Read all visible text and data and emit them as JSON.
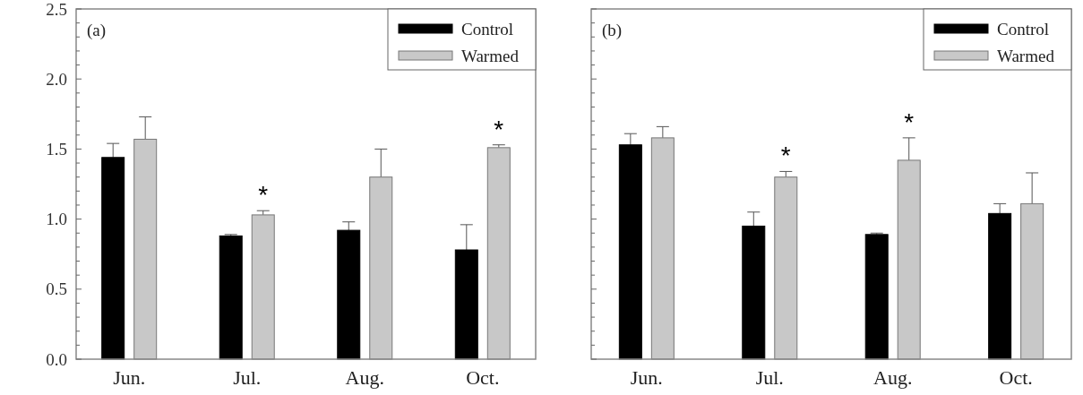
{
  "chart_data": [
    {
      "type": "bar",
      "categories": [
        "Jun.",
        "Jul.",
        "Aug.",
        "Oct."
      ],
      "series": [
        {
          "name": "Control",
          "color": "#000000",
          "values": [
            1.44,
            0.88,
            0.92,
            0.78
          ],
          "errors": [
            0.1,
            0.01,
            0.06,
            0.18
          ]
        },
        {
          "name": "Warmed",
          "color": "#c8c8c8",
          "values": [
            1.57,
            1.03,
            1.3,
            1.51
          ],
          "errors": [
            0.16,
            0.03,
            0.2,
            0.02
          ],
          "value_labels": [
            null,
            "*",
            null,
            "*"
          ]
        }
      ],
      "ylim": [
        0,
        2.5
      ],
      "yticks": [
        {
          "value": 0,
          "label": "0.0"
        },
        {
          "value": 0.1,
          "label": null
        },
        {
          "value": 0.2,
          "label": null
        },
        {
          "value": 0.3,
          "label": null
        },
        {
          "value": 0.4,
          "label": null
        },
        0.5,
        {
          "value": 0.6,
          "label": null
        },
        {
          "value": 0.7,
          "label": null
        },
        {
          "value": 0.8,
          "label": null
        },
        {
          "value": 0.9,
          "label": null
        },
        {
          "value": 1,
          "label": "1.0"
        },
        {
          "value": 1.1,
          "label": null
        },
        {
          "value": 1.2,
          "label": null
        },
        {
          "value": 1.3,
          "label": null
        },
        {
          "value": 1.4,
          "label": null
        },
        1.5,
        {
          "value": 1.6,
          "label": null
        },
        {
          "value": 1.7,
          "label": null
        },
        {
          "value": 1.8,
          "label": null
        },
        {
          "value": 1.9,
          "label": null
        },
        {
          "value": 2,
          "label": "2.0"
        },
        {
          "value": 2.1,
          "label": null
        },
        {
          "value": 2.2,
          "label": null
        },
        {
          "value": 2.3,
          "label": null
        },
        {
          "value": 2.4,
          "label": null
        },
        2.5
      ],
      "legend": "top right",
      "annotations": [
        "(a)"
      ]
    },
    {
      "type": "bar",
      "categories": [
        "Jun.",
        "Jul.",
        "Aug.",
        "Oct."
      ],
      "series": [
        {
          "name": "Control",
          "color": "#000000",
          "values": [
            1.53,
            0.95,
            0.89,
            1.04
          ],
          "errors": [
            0.08,
            0.1,
            0.01,
            0.07
          ]
        },
        {
          "name": "Warmed",
          "color": "#c8c8c8",
          "values": [
            1.58,
            1.3,
            1.42,
            1.11
          ],
          "errors": [
            0.08,
            0.04,
            0.16,
            0.22
          ],
          "value_labels": [
            null,
            "*",
            "*",
            null
          ]
        }
      ],
      "ylim": [
        0,
        2.5
      ],
      "yticks": [
        {
          "value": 0,
          "label": null
        },
        {
          "value": 0.1,
          "label": null
        },
        {
          "value": 0.2,
          "label": null
        },
        {
          "value": 0.3,
          "label": null
        },
        {
          "value": 0.4,
          "label": null
        },
        {
          "value": 0.5,
          "label": null
        },
        {
          "value": 0.6,
          "label": null
        },
        {
          "value": 0.7,
          "label": null
        },
        {
          "value": 0.8,
          "label": null
        },
        {
          "value": 0.9,
          "label": null
        },
        {
          "value": 1,
          "label": null
        },
        {
          "value": 1.1,
          "label": null
        },
        {
          "value": 1.2,
          "label": null
        },
        {
          "value": 1.3,
          "label": null
        },
        {
          "value": 1.4,
          "label": null
        },
        {
          "value": 1.5,
          "label": null
        },
        {
          "value": 1.6,
          "label": null
        },
        {
          "value": 1.7,
          "label": null
        },
        {
          "value": 1.8,
          "label": null
        },
        {
          "value": 1.9,
          "label": null
        },
        {
          "value": 2,
          "label": null
        },
        {
          "value": 2.1,
          "label": null
        },
        {
          "value": 2.2,
          "label": null
        },
        {
          "value": 2.3,
          "label": null
        },
        {
          "value": 2.4,
          "label": null
        },
        {
          "value": 2.5,
          "label": null
        }
      ],
      "tick_labels": "x",
      "legend": "top right",
      "annotations": [
        "(b)"
      ]
    }
  ]
}
